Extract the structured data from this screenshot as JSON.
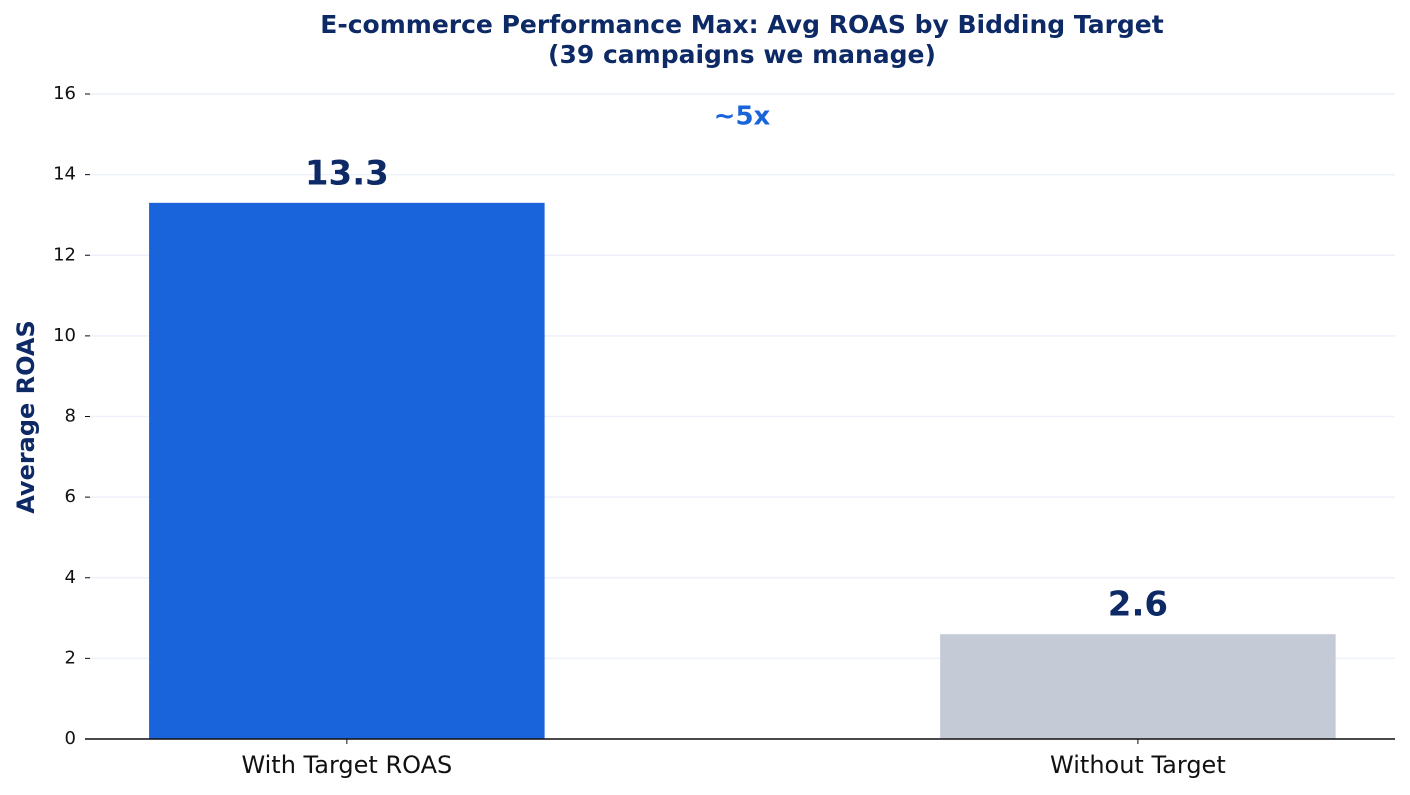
{
  "chart_data": {
    "type": "bar",
    "title": "E-commerce Performance Max: Avg ROAS by Bidding Target",
    "subtitle": "(39 campaigns we manage)",
    "y_label": "Average ROAS",
    "annotation": "~5x",
    "categories": [
      "With Target ROAS",
      "Without Target"
    ],
    "values": [
      13.3,
      2.6
    ],
    "colors": [
      "#1a64db",
      "#c4cad6"
    ],
    "ylim": [
      0,
      16
    ],
    "yticks": [
      0,
      2,
      4,
      6,
      8,
      10,
      12,
      14,
      16
    ],
    "grid": true
  }
}
